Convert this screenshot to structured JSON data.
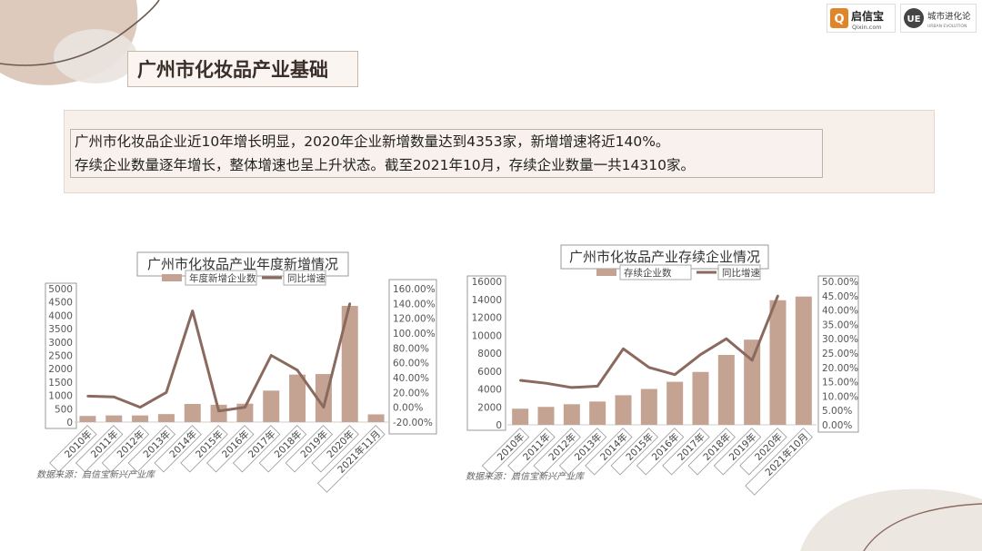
{
  "header": {
    "title": "广州市化妆品产业基础",
    "logo_text": "启信宝",
    "logo_domain": "Qixin.com",
    "logo2_text": "城市进化论",
    "logo2_mark": "UE",
    "logo2_subtext": "URBAN EVOLUTION"
  },
  "intro": {
    "line1": "广州市化妆品企业近10年增长明显，2020年企业新增数量达到4353家，新增增速将近140%。",
    "line2": "存续企业数量逐年增长，整体增速也呈上升状态。截至2021年10月，存续企业数量一共14310家。"
  },
  "colors": {
    "bar": "#c4a393",
    "line": "#8a6a5e",
    "accent": "#c9b8aa"
  },
  "chart_data": [
    {
      "type": "bar",
      "title": "广州市化妆品产业年度新增情况",
      "categories": [
        "2010年",
        "2011年",
        "2012年",
        "2013年",
        "2014年",
        "2015年",
        "2016年",
        "2017年",
        "2018年",
        "2019年",
        "2020年",
        "2021年11月"
      ],
      "series": [
        {
          "name": "年度新增企业数",
          "type": "bar",
          "axis": "left",
          "values": [
            230,
            250,
            250,
            300,
            680,
            650,
            690,
            1180,
            1780,
            1800,
            4353,
            290
          ]
        },
        {
          "name": "同比增速",
          "type": "line",
          "axis": "right",
          "values": [
            0.15,
            0.14,
            0.0,
            0.2,
            1.3,
            -0.05,
            0.0,
            0.7,
            0.5,
            0.0,
            1.4,
            null
          ]
        }
      ],
      "left_axis": {
        "ticks": [
          "0",
          "500",
          "1000",
          "1500",
          "2000",
          "2500",
          "3000",
          "3500",
          "4000",
          "4500",
          "5000"
        ],
        "range": [
          0,
          5000
        ]
      },
      "right_axis": {
        "ticks": [
          "-20.00%",
          "0.00%",
          "20.00%",
          "40.00%",
          "60.00%",
          "80.00%",
          "100.00%",
          "120.00%",
          "140.00%",
          "160.00%"
        ],
        "range": [
          -0.2,
          1.6
        ]
      },
      "source": "数据来源：启信宝新兴产业库"
    },
    {
      "type": "bar",
      "title": "广州市化妆品产业存续企业情况",
      "categories": [
        "2010年",
        "2011年",
        "2012年",
        "2013年",
        "2014年",
        "2015年",
        "2016年",
        "2017年",
        "2018年",
        "2019年",
        "2020年",
        "2021年10月"
      ],
      "series": [
        {
          "name": "存续企业数",
          "type": "bar",
          "axis": "left",
          "values": [
            1800,
            2000,
            2300,
            2600,
            3300,
            4000,
            4800,
            5900,
            7800,
            9500,
            13900,
            14310
          ]
        },
        {
          "name": "同比增速",
          "type": "line",
          "axis": "right",
          "values": [
            0.155,
            0.145,
            0.13,
            0.135,
            0.265,
            0.2,
            0.175,
            0.245,
            0.3,
            0.225,
            0.45,
            null
          ]
        }
      ],
      "left_axis": {
        "ticks": [
          "0",
          "2000",
          "4000",
          "6000",
          "8000",
          "10000",
          "12000",
          "14000",
          "16000"
        ],
        "range": [
          0,
          16000
        ]
      },
      "right_axis": {
        "ticks": [
          "0.00%",
          "5.00%",
          "10.00%",
          "15.00%",
          "20.00%",
          "25.00%",
          "30.00%",
          "35.00%",
          "40.00%",
          "45.00%",
          "50.00%"
        ],
        "range": [
          0,
          0.5
        ]
      },
      "source": "数据来源：启信宝新兴产业库"
    }
  ]
}
